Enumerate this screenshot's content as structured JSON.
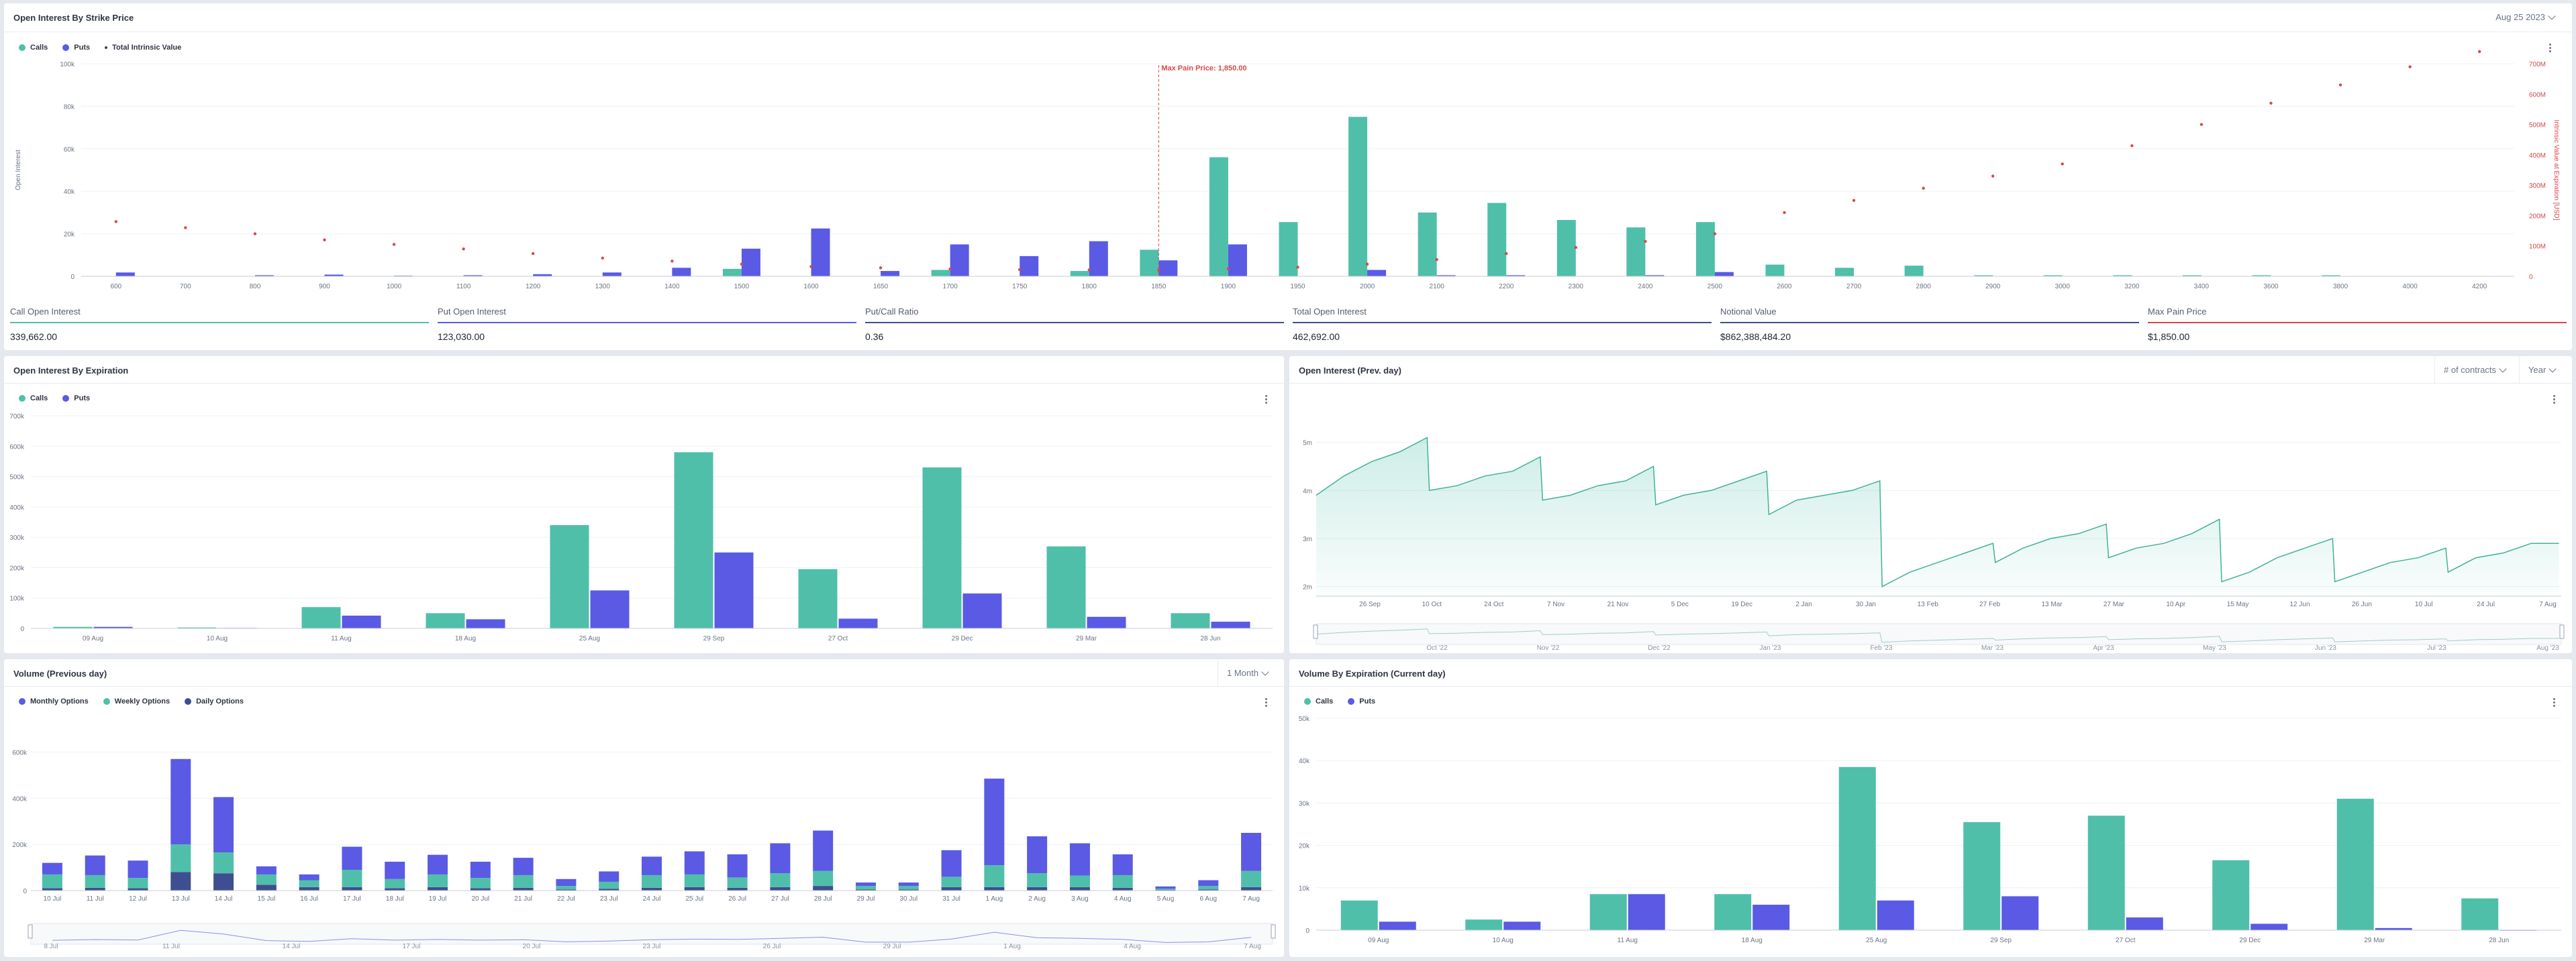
{
  "colors": {
    "calls": "#4fbfaa",
    "puts": "#5a5ae5",
    "weekly": "#4fbfaa",
    "monthly": "#5a5ae5",
    "daily": "#3f4e8f",
    "intrinsic": "#d94848",
    "area_line": "#3fb396"
  },
  "panel1": {
    "title": "Open Interest By Strike Price",
    "date_select": "Aug 25 2023",
    "menu_icon": "kebab-icon",
    "legend": [
      "Calls",
      "Puts",
      "Total Intrinsic Value"
    ],
    "ylabel_left": "Open Interest",
    "ylabel_right": "Intrinsic Value at Expiration [USD]",
    "annotation": "Max Pain Price: 1,850.00"
  },
  "stats": [
    {
      "label": "Call Open Interest",
      "value": "339,662.00",
      "color": "#4fbfaa"
    },
    {
      "label": "Put Open Interest",
      "value": "123,030.00",
      "color": "#5a5ae5"
    },
    {
      "label": "Put/Call Ratio",
      "value": "0.36",
      "color": "#3f4e8f"
    },
    {
      "label": "Total Open Interest",
      "value": "462,692.00",
      "color": "#3f4e8f"
    },
    {
      "label": "Notional Value",
      "value": "$862,388,484.20",
      "color": "#3f4e8f"
    },
    {
      "label": "Max Pain Price",
      "value": "$1,850.00",
      "color": "#d94848"
    }
  ],
  "panel2": {
    "title": "Open Interest By Expiration",
    "legend": [
      "Calls",
      "Puts"
    ]
  },
  "panel3": {
    "title": "Open Interest (Prev. day)",
    "unit_select": "# of contracts",
    "range_select": "Year"
  },
  "panel4": {
    "title": "Volume (Previous day)",
    "range_select": "1 Month",
    "legend": [
      "Monthly Options",
      "Weekly Options",
      "Daily Options"
    ]
  },
  "panel5": {
    "title": "Volume By Expiration (Current day)",
    "legend": [
      "Calls",
      "Puts"
    ]
  },
  "chart_data": [
    {
      "type": "bar",
      "title": "Open Interest By Strike Price",
      "ylabel": "Open Interest",
      "y2label": "Intrinsic Value at Expiration [USD]",
      "ylim": [
        0,
        100000
      ],
      "yticks": [
        "0",
        "20k",
        "40k",
        "60k",
        "80k",
        "100k"
      ],
      "y2lim": [
        0,
        700000000
      ],
      "y2ticks": [
        "0",
        "100M",
        "200M",
        "300M",
        "400M",
        "500M",
        "600M",
        "700M"
      ],
      "categories": [
        "600",
        "700",
        "800",
        "900",
        "1000",
        "1100",
        "1200",
        "1300",
        "1400",
        "1500",
        "1600",
        "1650",
        "1700",
        "1750",
        "1800",
        "1850",
        "1900",
        "1950",
        "2000",
        "2100",
        "2200",
        "2300",
        "2400",
        "2500",
        "2600",
        "2700",
        "2800",
        "2900",
        "3000",
        "3200",
        "3400",
        "3600",
        "3800",
        "4000",
        "4200"
      ],
      "series": [
        {
          "name": "Calls",
          "values": [
            0,
            0,
            0,
            0,
            0,
            0,
            0,
            0,
            0,
            3500,
            0,
            0,
            3000,
            0,
            2500,
            12500,
            56000,
            25500,
            75000,
            30000,
            34500,
            26500,
            23000,
            25500,
            5500,
            4000,
            5000,
            500,
            500,
            500,
            500,
            500,
            500,
            0,
            0
          ]
        },
        {
          "name": "Puts",
          "values": [
            1800,
            0,
            500,
            800,
            300,
            500,
            1000,
            1800,
            4000,
            13000,
            22500,
            2500,
            15000,
            9500,
            16500,
            7500,
            15000,
            0,
            3000,
            500,
            500,
            0,
            500,
            2000,
            0,
            0,
            0,
            0,
            0,
            0,
            0,
            0,
            0,
            0,
            0
          ]
        },
        {
          "name": "Total Intrinsic Value",
          "values": [
            180000000,
            160000000,
            140000000,
            120000000,
            105000000,
            90000000,
            75000000,
            60000000,
            50000000,
            40000000,
            32000000,
            28000000,
            24000000,
            22000000,
            21000000,
            20000000,
            25000000,
            30000000,
            40000000,
            55000000,
            75000000,
            95000000,
            115000000,
            140000000,
            210000000,
            250000000,
            290000000,
            330000000,
            370000000,
            430000000,
            500000000,
            570000000,
            630000000,
            690000000,
            740000000
          ]
        }
      ],
      "annotation": {
        "x": "1850",
        "text": "Max Pain Price: 1,850.00"
      }
    },
    {
      "type": "bar",
      "title": "Open Interest By Expiration",
      "ylim": [
        0,
        700000
      ],
      "yticks": [
        "0",
        "100k",
        "200k",
        "300k",
        "400k",
        "500k",
        "600k",
        "700k"
      ],
      "categories": [
        "09 Aug",
        "10 Aug",
        "11 Aug",
        "18 Aug",
        "25 Aug",
        "29 Sep",
        "27 Oct",
        "29 Dec",
        "29 Mar",
        "28 Jun"
      ],
      "series": [
        {
          "name": "Calls",
          "values": [
            5000,
            3000,
            70000,
            50000,
            340000,
            580000,
            195000,
            530000,
            270000,
            50000
          ]
        },
        {
          "name": "Puts",
          "values": [
            5000,
            1500,
            42000,
            30000,
            125000,
            250000,
            32000,
            115000,
            38000,
            22000
          ]
        }
      ]
    },
    {
      "type": "area",
      "title": "Open Interest (Prev. day)",
      "ylim": [
        1.8,
        5.4
      ],
      "yticks": [
        "2m",
        "3m",
        "4m",
        "5m"
      ],
      "xticks": [
        "26 Sep",
        "10 Oct",
        "24 Oct",
        "7 Nov",
        "21 Nov",
        "5 Dec",
        "19 Dec",
        "2 Jan",
        "30 Jan",
        "13 Feb",
        "27 Feb",
        "13 Mar",
        "27 Mar",
        "10 Apr",
        "15 May",
        "12 Jun",
        "26 Jun",
        "10 Jul",
        "24 Jul",
        "7 Aug"
      ],
      "navigator_ticks": [
        "Oct '22",
        "Nov '22",
        "Dec '22",
        "Jan '23",
        "Feb '23",
        "Mar '23",
        "Apr '23",
        "May '23",
        "Jun '23",
        "Jul '23",
        "Aug '23"
      ],
      "segments": [
        [
          3.9,
          4.3,
          4.6,
          4.8,
          5.1
        ],
        [
          4.0,
          4.1,
          4.3,
          4.4,
          4.7
        ],
        [
          3.8,
          3.9,
          4.1,
          4.2,
          4.5
        ],
        [
          3.7,
          3.9,
          4.0,
          4.2,
          4.4
        ],
        [
          3.5,
          3.8,
          3.9,
          4.0,
          4.2
        ],
        [
          2.0,
          2.3,
          2.5,
          2.7,
          2.9
        ],
        [
          2.5,
          2.8,
          3.0,
          3.1,
          3.3
        ],
        [
          2.6,
          2.8,
          2.9,
          3.1,
          3.4
        ],
        [
          2.1,
          2.3,
          2.6,
          2.8,
          3.0
        ],
        [
          2.1,
          2.3,
          2.5,
          2.6,
          2.8
        ],
        [
          2.3,
          2.6,
          2.7,
          2.9,
          2.9
        ]
      ],
      "seg_end_dates": [
        "26 Sep",
        "21 Nov",
        "19 Dec",
        "30 Jan",
        "27 Feb",
        "27 Mar",
        "27 Apr",
        "25 May",
        "29 Jun",
        "27 Jul",
        "9 Aug"
      ]
    },
    {
      "type": "bar",
      "stacked": true,
      "title": "Volume (Previous day)",
      "ylim": [
        0,
        700000
      ],
      "yticks": [
        "0",
        "200k",
        "400k",
        "600k"
      ],
      "categories": [
        "10 Jul",
        "11 Jul",
        "12 Jul",
        "13 Jul",
        "14 Jul",
        "15 Jul",
        "16 Jul",
        "17 Jul",
        "18 Jul",
        "19 Jul",
        "20 Jul",
        "21 Jul",
        "22 Jul",
        "23 Jul",
        "24 Jul",
        "25 Jul",
        "26 Jul",
        "27 Jul",
        "28 Jul",
        "29 Jul",
        "30 Jul",
        "31 Jul",
        "1 Aug",
        "2 Aug",
        "3 Aug",
        "4 Aug",
        "5 Aug",
        "6 Aug",
        "7 Aug"
      ],
      "series": [
        {
          "name": "Daily Options",
          "values": [
            10000,
            12000,
            10000,
            80000,
            75000,
            25000,
            15000,
            15000,
            10000,
            15000,
            10000,
            12000,
            5000,
            8000,
            12000,
            15000,
            12000,
            15000,
            20000,
            5000,
            5000,
            15000,
            15000,
            15000,
            15000,
            12000,
            3000,
            5000,
            15000
          ]
        },
        {
          "name": "Weekly Options",
          "values": [
            60000,
            55000,
            45000,
            120000,
            90000,
            45000,
            30000,
            75000,
            40000,
            55000,
            45000,
            55000,
            15000,
            30000,
            55000,
            55000,
            45000,
            60000,
            65000,
            15000,
            15000,
            45000,
            95000,
            60000,
            50000,
            55000,
            5000,
            15000,
            70000
          ]
        },
        {
          "name": "Monthly Options",
          "values": [
            50000,
            85000,
            75000,
            370000,
            240000,
            35000,
            25000,
            100000,
            75000,
            85000,
            70000,
            75000,
            30000,
            45000,
            80000,
            100000,
            100000,
            130000,
            175000,
            15000,
            15000,
            115000,
            375000,
            160000,
            140000,
            90000,
            10000,
            25000,
            165000
          ]
        }
      ],
      "navigator_ticks": [
        "8 Jul",
        "11 Jul",
        "14 Jul",
        "17 Jul",
        "20 Jul",
        "23 Jul",
        "26 Jul",
        "29 Jul",
        "1 Aug",
        "4 Aug",
        "7 Aug"
      ]
    },
    {
      "type": "bar",
      "title": "Volume By Expiration (Current day)",
      "ylim": [
        0,
        50000
      ],
      "yticks": [
        "0",
        "10k",
        "20k",
        "30k",
        "40k",
        "50k"
      ],
      "categories": [
        "09 Aug",
        "10 Aug",
        "11 Aug",
        "18 Aug",
        "25 Aug",
        "29 Sep",
        "27 Oct",
        "29 Dec",
        "29 Mar",
        "28 Jun"
      ],
      "series": [
        {
          "name": "Calls",
          "values": [
            7000,
            2500,
            8500,
            8500,
            38500,
            25500,
            27000,
            16500,
            31000,
            7500
          ]
        },
        {
          "name": "Puts",
          "values": [
            2000,
            2000,
            8500,
            6000,
            7000,
            8000,
            3000,
            1500,
            500,
            0
          ]
        }
      ]
    }
  ]
}
